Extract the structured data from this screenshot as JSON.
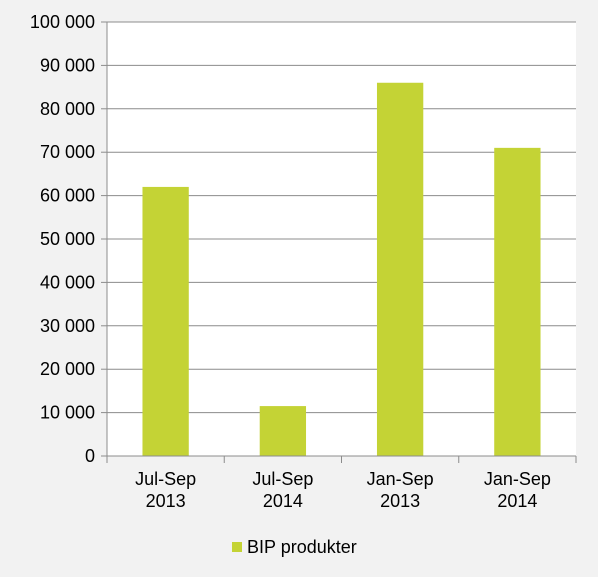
{
  "chart_data": {
    "type": "bar",
    "categories": [
      [
        "Jul-Sep",
        "2013"
      ],
      [
        "Jul-Sep",
        "2014"
      ],
      [
        "Jan-Sep",
        "2013"
      ],
      [
        "Jan-Sep",
        "2014"
      ]
    ],
    "series": [
      {
        "name": "BIP produkter",
        "values": [
          62000,
          11500,
          86000,
          71000
        ],
        "color": "#c4d335"
      }
    ],
    "y_ticks": [
      "0",
      "10 000",
      "20 000",
      "30 000",
      "40 000",
      "50 000",
      "60 000",
      "70 000",
      "80 000",
      "90 000",
      "100 000"
    ],
    "ylim": [
      0,
      100000
    ],
    "y_step": 10000,
    "grid": true,
    "legend_position": "bottom",
    "colors": {
      "background": "#f2f2f2",
      "plot_background": "#ffffff",
      "grid": "#8c8c8c",
      "axis": "#8c8c8c"
    }
  }
}
